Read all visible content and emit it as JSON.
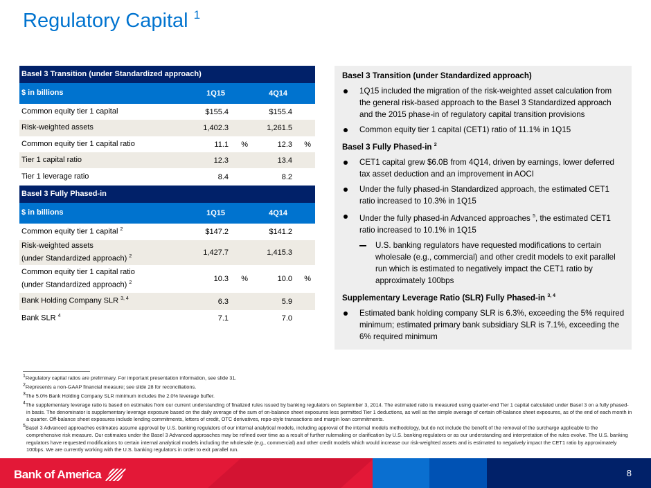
{
  "title": "Regulatory Capital",
  "title_sup": "1",
  "table": {
    "transition": {
      "header": "Basel 3 Transition (under Standardized approach)",
      "unit": "$ in billions",
      "col1": "1Q15",
      "col2": "4Q14",
      "rows": [
        {
          "label": "Common equity tier 1 capital",
          "v1": "$155.4",
          "v2": "$155.4"
        },
        {
          "label": "Risk-weighted assets",
          "v1": "1,402.3",
          "v2": "1,261.5"
        },
        {
          "label": "Common equity tier 1 capital ratio",
          "v1": "11.1",
          "p1": "%",
          "v2": "12.3",
          "p2": "%"
        },
        {
          "label": "Tier 1 capital ratio",
          "v1": "12.3",
          "v2": "13.4"
        },
        {
          "label": "Tier 1 leverage ratio",
          "v1": "8.4",
          "v2": "8.2"
        }
      ]
    },
    "phased": {
      "header": "Basel 3 Fully Phased-in",
      "unit": "$ in billions",
      "col1": "1Q15",
      "col2": "4Q14",
      "rows": [
        {
          "label": "Common equity tier 1 capital",
          "sup": "2",
          "v1": "$147.2",
          "v2": "$141.2"
        },
        {
          "label": "Risk-weighted assets",
          "label2": "(under Standardized approach)",
          "sup": "2",
          "v1": "1,427.7",
          "v2": "1,415.3"
        },
        {
          "label": "Common equity tier 1 capital ratio",
          "label2": "(under Standardized approach)",
          "sup": "2",
          "v1": "10.3",
          "p1": "%",
          "v2": "10.0",
          "p2": "%"
        },
        {
          "label": "Bank Holding Company SLR",
          "sup": "3, 4",
          "v1": "6.3",
          "v2": "5.9"
        },
        {
          "label": "Bank SLR",
          "sup": "4",
          "v1": "7.1",
          "v2": "7.0"
        }
      ]
    }
  },
  "panel": {
    "h1": "Basel 3 Transition (under Standardized approach)",
    "b1": "1Q15 included the migration of the risk-weighted asset calculation from the general risk-based approach to the Basel 3 Standardized approach and the 2015 phase-in of regulatory capital transition provisions",
    "b2": "Common equity tier 1 capital (CET1) ratio of 11.1% in 1Q15",
    "h2": "Basel 3 Fully Phased-in",
    "h2_sup": "2",
    "b3": "CET1 capital grew $6.0B from 4Q14, driven by earnings, lower deferred tax asset deduction and an improvement in AOCI",
    "b4": "Under the fully phased-in Standardized approach, the estimated CET1 ratio increased to 10.3% in 1Q15",
    "b5a": "Under the fully phased-in Advanced approaches",
    "b5_sup": "5",
    "b5b": ", the estimated CET1 ratio increased to 10.1% in 1Q15",
    "d1": "U.S. banking regulators have requested modifications to certain wholesale (e.g., commercial) and other credit models to exit parallel run which is estimated to negatively impact the CET1 ratio by approximately 100bps",
    "h3": "Supplementary Leverage Ratio (SLR) Fully Phased-in",
    "h3_sup": "3, 4",
    "b6": "Estimated bank holding company SLR is 6.3%, exceeding the 5% required minimum; estimated primary bank subsidiary SLR is 7.1%, exceeding the 6% required minimum"
  },
  "footnotes": [
    {
      "n": "1",
      "t": "Regulatory capital ratios are preliminary. For important presentation information, see slide 31."
    },
    {
      "n": "2",
      "t": "Represents a non-GAAP financial measure; see slide 28 for reconciliations."
    },
    {
      "n": "3",
      "t": "The 5.0% Bank Holding Company SLR minimum includes the 2.0% leverage buffer."
    },
    {
      "n": "4",
      "t": "The supplementary leverage ratio is based on estimates from our current understanding of finalized rules issued by banking regulators on September 3, 2014. The estimated ratio is measured using quarter-end Tier 1 capital calculated under Basel 3 on a fully phased-in basis. The denominator is supplementary leverage exposure based on the daily average of the sum of on-balance sheet exposures less permitted Tier 1 deductions, as well as the simple average of certain off-balance sheet exposures, as of the end of each month in a quarter. Off-balance sheet exposures include lending commitments, letters of credit, OTC derivatives, repo-style transactions and margin loan commitments."
    },
    {
      "n": "5",
      "t": "Basel 3 Advanced approaches estimates assume approval by U.S. banking regulators of our internal analytical models, including approval of the internal models methodology, but do not include the benefit of the removal of the surcharge applicable to the comprehensive risk measure. Our estimates under the Basel 3 Advanced approaches may be refined over time as a result of further rulemaking or clarification by U.S. banking regulators or as our understanding and interpretation of the rules evolve. The U.S. banking regulators have requested modifications to certain internal analytical models including the wholesale (e.g., commercial) and other credit models which would increase our risk-weighted assets and is estimated to negatively impact the CET1 ratio by approximately 100bps. We are currently working with the U.S. banking regulators in order to exit parallel run."
    }
  ],
  "footer": {
    "logo": "Bank of America",
    "page": "8"
  },
  "colors": {
    "title": "#0073CF",
    "navy": "#012169",
    "blue": "#0073CF",
    "red": "#E31837"
  }
}
